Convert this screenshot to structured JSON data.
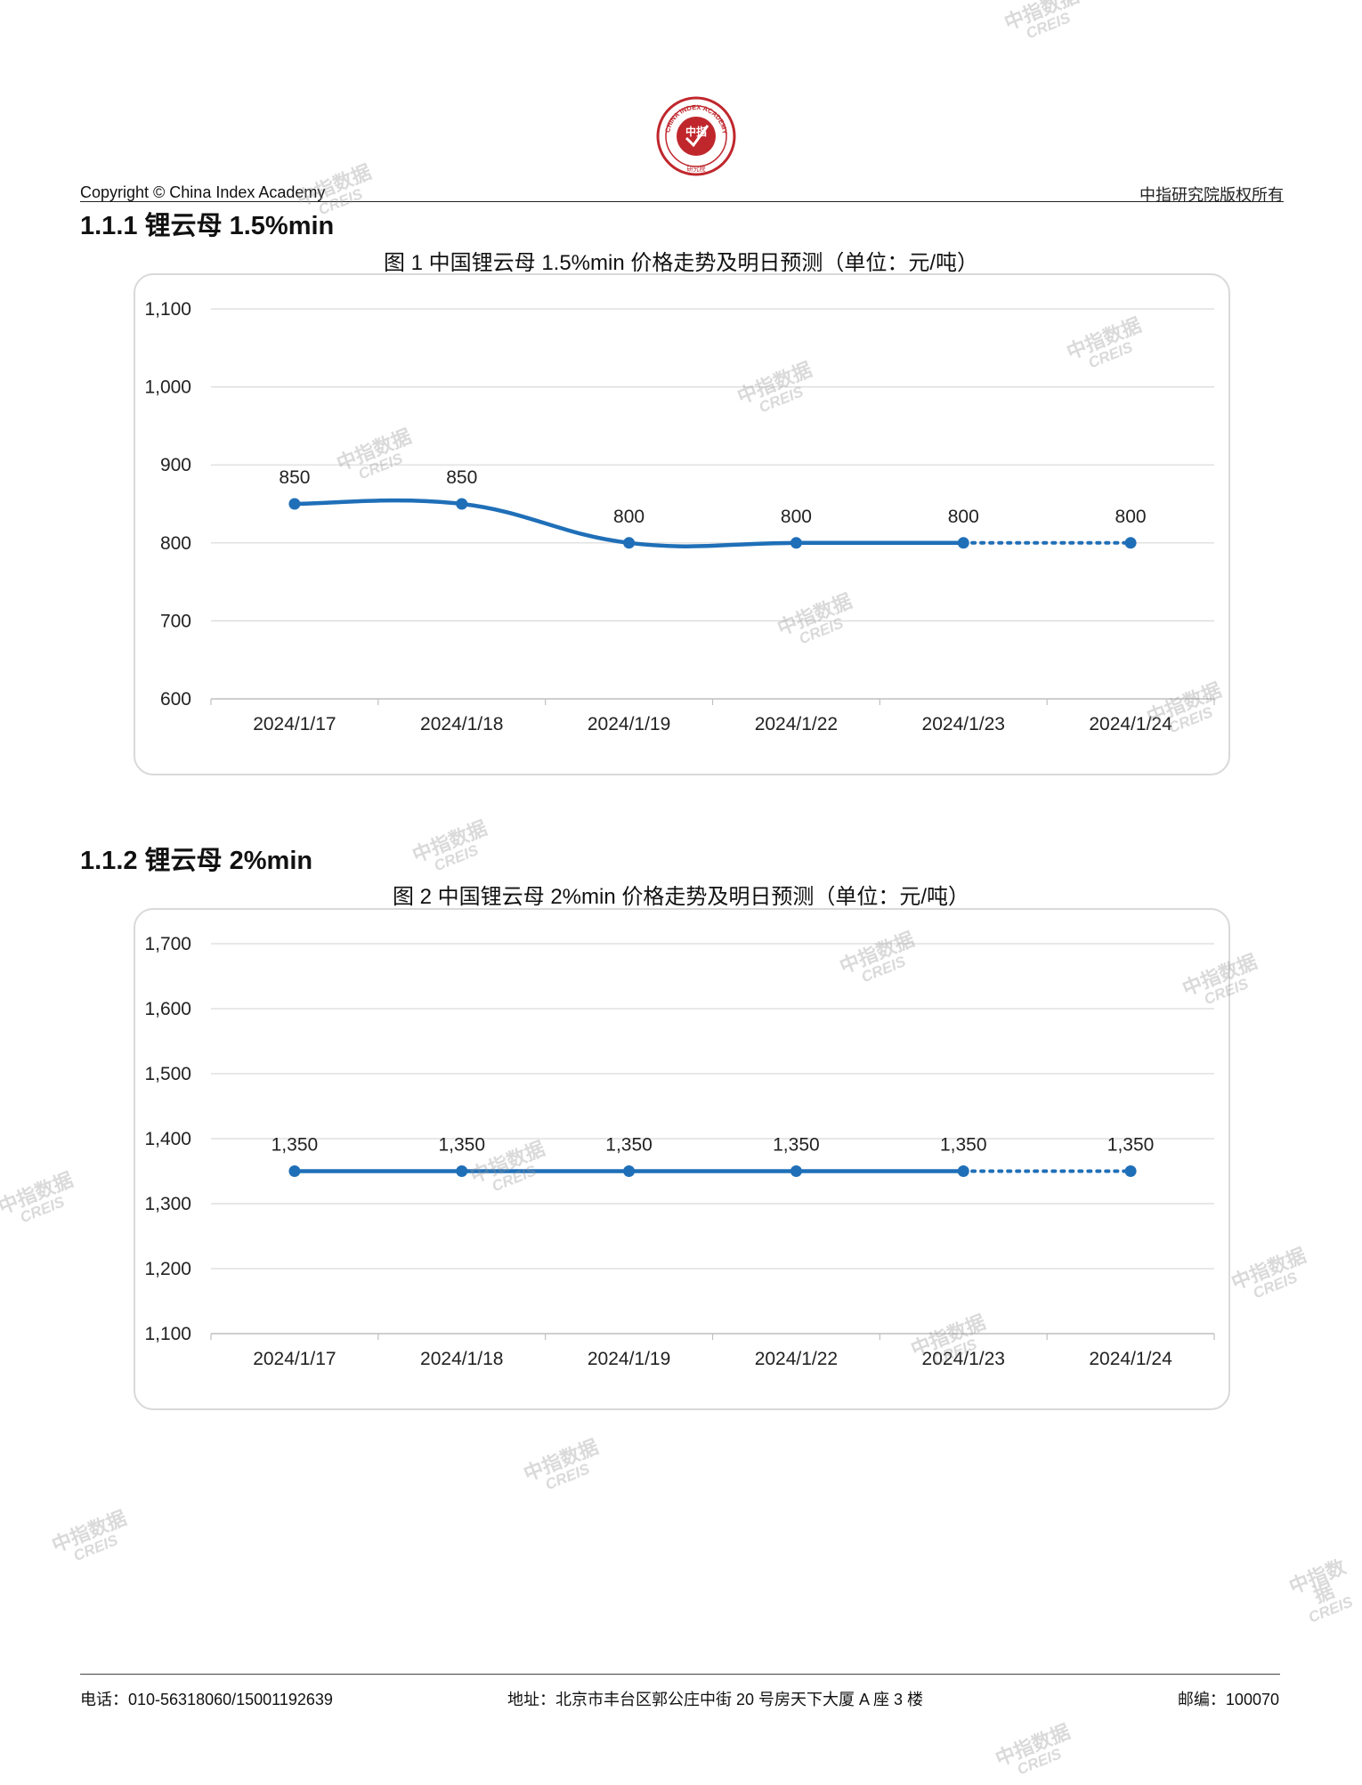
{
  "header": {
    "logo_text_outer": "CHINA INDEX ACADEMY",
    "logo_text_inner": "中指",
    "logo_text_bottom": "研究院",
    "copyright": "Copyright © China Index Academy",
    "rights": "中指研究院版权所有"
  },
  "sections": [
    {
      "title": "1.1.1 锂云母 1.5%min",
      "figure_title": "图 1 中国锂云母 1.5%min 价格走势及明日预测（单位：元/吨）"
    },
    {
      "title": "1.1.2 锂云母 2%min",
      "figure_title": "图 2 中国锂云母 2%min 价格走势及明日预测（单位：元/吨）"
    }
  ],
  "chart_data": [
    {
      "type": "line",
      "categories": [
        "2024/1/17",
        "2024/1/18",
        "2024/1/19",
        "2024/1/22",
        "2024/1/23",
        "2024/1/24"
      ],
      "values": [
        850,
        850,
        800,
        800,
        800,
        800
      ],
      "data_labels": [
        "850",
        "850",
        "800",
        "800",
        "800",
        "800"
      ],
      "forecast_from_index": 4,
      "ylim": [
        600,
        1100
      ],
      "yticks": [
        600,
        700,
        800,
        900,
        1000,
        1100
      ],
      "ytick_labels": [
        "600",
        "700",
        "800",
        "900",
        "1,000",
        "1,100"
      ],
      "grid": true,
      "color": "#1f6fb8",
      "title": "图 1 中国锂云母 1.5%min 价格走势及明日预测（单位：元/吨）"
    },
    {
      "type": "line",
      "categories": [
        "2024/1/17",
        "2024/1/18",
        "2024/1/19",
        "2024/1/22",
        "2024/1/23",
        "2024/1/24"
      ],
      "values": [
        1350,
        1350,
        1350,
        1350,
        1350,
        1350
      ],
      "data_labels": [
        "1,350",
        "1,350",
        "1,350",
        "1,350",
        "1,350",
        "1,350"
      ],
      "forecast_from_index": 4,
      "ylim": [
        1100,
        1700
      ],
      "yticks": [
        1100,
        1200,
        1300,
        1400,
        1500,
        1600,
        1700
      ],
      "ytick_labels": [
        "1,100",
        "1,200",
        "1,300",
        "1,400",
        "1,500",
        "1,600",
        "1,700"
      ],
      "grid": true,
      "color": "#1f6fb8",
      "title": "图 2 中国锂云母 2%min 价格走势及明日预测（单位：元/吨）"
    }
  ],
  "watermark": {
    "cn": "中指数据",
    "en": "CREIS"
  },
  "footer": {
    "phone": "电话：010-56318060/15001192639",
    "address": "地址：北京市丰台区郭公庄中街 20 号房天下大厦 A 座 3 楼",
    "postcode": "邮编：100070"
  }
}
